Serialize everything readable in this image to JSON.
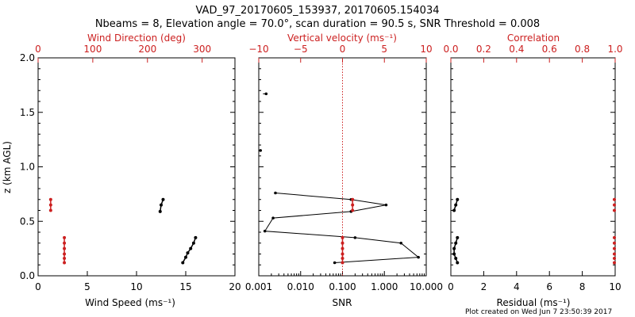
{
  "title_line1": "VAD_97_20170605_153937, 20170605.154034",
  "title_line2": "Nbeams = 8, Elevation angle = 70.0°, scan duration = 90.5 s, SNR Threshold = 0.008",
  "footer": "Plot created on Wed Jun  7 23:50:39 2017",
  "colors": {
    "axis": "#000000",
    "accent": "#cc2020"
  },
  "chart_data": [
    {
      "type": "scatter",
      "panel": "wind",
      "ylabel": "z (km AGL)",
      "ylim": [
        0,
        2
      ],
      "yticks": [
        "0.0",
        "0.5",
        "1.0",
        "1.5",
        "2.0"
      ],
      "xlabel": "Wind Speed (ms⁻¹)",
      "xlim": [
        0,
        20
      ],
      "xticks": [
        "0",
        "5",
        "10",
        "15",
        "20"
      ],
      "top_label": "Wind Direction (deg)",
      "top_lim": [
        0,
        360
      ],
      "top_ticks": [
        "0",
        "100",
        "200",
        "300"
      ],
      "series": [
        {
          "name": "Wind Speed",
          "points": [
            [
              12.7,
              0.7
            ],
            [
              12.5,
              0.65
            ],
            [
              12.4,
              0.59
            ],
            [
              16.0,
              0.35
            ],
            [
              15.8,
              0.3
            ],
            [
              15.5,
              0.25
            ],
            [
              15.2,
              0.21
            ],
            [
              15.0,
              0.17
            ],
            [
              14.7,
              0.12
            ]
          ]
        },
        {
          "name": "Wind Direction",
          "points": [
            [
              23,
              0.7
            ],
            [
              23,
              0.65
            ],
            [
              23,
              0.6
            ],
            [
              48,
              0.35
            ],
            [
              48,
              0.3
            ],
            [
              48,
              0.25
            ],
            [
              48,
              0.2
            ],
            [
              48,
              0.16
            ],
            [
              48,
              0.12
            ]
          ]
        }
      ]
    },
    {
      "type": "line",
      "panel": "snr",
      "ylim": [
        0,
        2
      ],
      "xlabel": "SNR",
      "xscale": "log",
      "xlim": [
        0.001,
        10
      ],
      "xticks": [
        "0.001",
        "0.010",
        "0.100",
        "1.000",
        "10.000"
      ],
      "top_label": "Vertical velocity (ms⁻¹)",
      "top_lim": [
        -10,
        10
      ],
      "top_ticks": [
        "−10",
        "−5",
        "0",
        "5",
        "10"
      ],
      "series": [
        {
          "name": "SNR",
          "points": [
            [
              0.0015,
              1.67
            ],
            [
              0.0011,
              1.15
            ],
            [
              0.0025,
              0.76
            ],
            [
              0.16,
              0.7
            ],
            [
              1.1,
              0.65
            ],
            [
              0.16,
              0.59
            ],
            [
              0.0022,
              0.53
            ],
            [
              0.0014,
              0.41
            ],
            [
              0.2,
              0.35
            ],
            [
              2.5,
              0.3
            ],
            [
              6.5,
              0.17
            ],
            [
              0.065,
              0.12
            ]
          ]
        },
        {
          "name": "Vertical velocity",
          "points": [
            [
              1.2,
              0.7
            ],
            [
              1.2,
              0.65
            ],
            [
              1.2,
              0.6
            ],
            [
              0,
              0.35
            ],
            [
              0,
              0.3
            ],
            [
              0,
              0.25
            ],
            [
              0,
              0.2
            ],
            [
              0,
              0.16
            ],
            [
              0,
              0.12
            ]
          ]
        }
      ]
    },
    {
      "type": "scatter",
      "panel": "residual",
      "ylim": [
        0,
        2
      ],
      "xlabel": "Residual (ms⁻¹)",
      "xlim": [
        0,
        10
      ],
      "xticks": [
        "0",
        "2",
        "4",
        "6",
        "8",
        "10"
      ],
      "top_label": "Correlation",
      "top_lim": [
        0,
        1
      ],
      "top_ticks": [
        "0.0",
        "0.2",
        "0.4",
        "0.6",
        "0.8",
        "1.0"
      ],
      "series": [
        {
          "name": "Residual",
          "points": [
            [
              0.4,
              0.7
            ],
            [
              0.3,
              0.65
            ],
            [
              0.2,
              0.6
            ],
            [
              0.4,
              0.35
            ],
            [
              0.3,
              0.3
            ],
            [
              0.2,
              0.25
            ],
            [
              0.2,
              0.2
            ],
            [
              0.3,
              0.16
            ],
            [
              0.4,
              0.12
            ]
          ]
        },
        {
          "name": "Correlation",
          "points": [
            [
              1.0,
              0.7
            ],
            [
              1.0,
              0.65
            ],
            [
              1.0,
              0.6
            ],
            [
              1.0,
              0.35
            ],
            [
              1.0,
              0.3
            ],
            [
              1.0,
              0.25
            ],
            [
              1.0,
              0.2
            ],
            [
              1.0,
              0.16
            ],
            [
              1.0,
              0.12
            ]
          ]
        }
      ]
    }
  ]
}
